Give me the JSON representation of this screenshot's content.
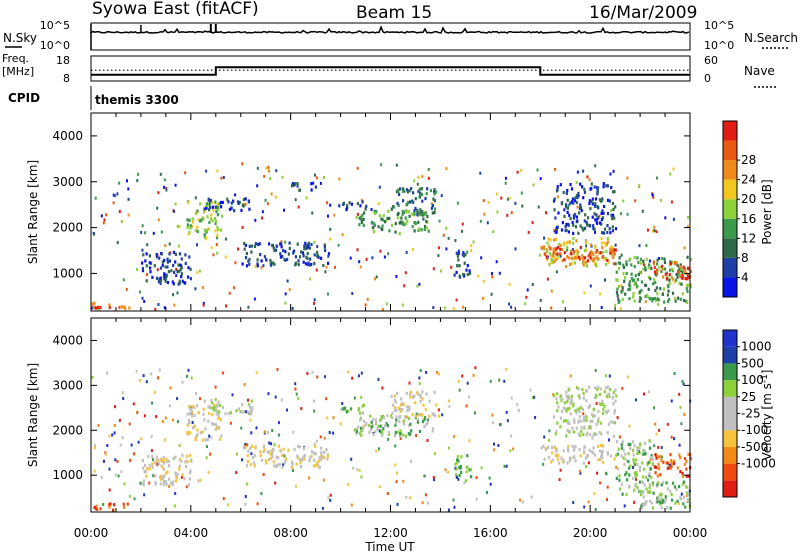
{
  "header": {
    "station": "Syowa East (fitACF)",
    "beam": "Beam 15",
    "date": "16/Mar/2009"
  },
  "top_panels": {
    "nsky_label": "N.Sky",
    "nsky_ticks": [
      "10^5",
      "10^0"
    ],
    "nsearch_label": "N.Search",
    "nsearch_ticks": [
      "10^5",
      "10^0"
    ],
    "freq_label": "Freq.",
    "freq_unit": "[MHz]",
    "freq_ticks": [
      "18",
      "8"
    ],
    "nave_label": "Nave",
    "nave_ticks": [
      "60",
      "0"
    ],
    "cpid_label": "CPID",
    "cpid_value": "themis 3300"
  },
  "colors": {
    "power_scale": [
      "#0a14e6",
      "#1f3fa8",
      "#2f6b4a",
      "#3b9a4c",
      "#8cd03c",
      "#f2c81e",
      "#f08a1a",
      "#e85a14",
      "#e01e14"
    ],
    "velocity_scale": [
      "#e01e14",
      "#ef4b10",
      "#f28a1a",
      "#f5c43c",
      "#c0c0c0",
      "#c0c0c0",
      "#8cd03c",
      "#3b9a4c",
      "#1f3fa8",
      "#2233cc"
    ]
  },
  "chart_data": [
    {
      "type": "line",
      "title": "N.Sky / N.Search",
      "xlabel": "",
      "ylabel": "",
      "x": [
        "00:00",
        "04:00",
        "08:00",
        "12:00",
        "16:00",
        "20:00",
        "00:00"
      ],
      "series": [
        {
          "name": "N.Sky",
          "values": [
            10000,
            10000,
            10000,
            10000,
            10000,
            10000,
            10000
          ]
        },
        {
          "name": "N.Search",
          "values": [
            10000,
            10000,
            10000,
            10000,
            10000,
            10000,
            10000
          ]
        }
      ]
    },
    {
      "type": "line",
      "title": "Freq. / Nave",
      "xlabel": "",
      "ylabel": "Freq. [MHz]",
      "x_hours": [
        0,
        5,
        5,
        18,
        18,
        24
      ],
      "series": [
        {
          "name": "Freq.",
          "values": [
            10.5,
            10.5,
            13.5,
            13.5,
            10.5,
            10.5
          ]
        },
        {
          "name": "Nave",
          "values": [
            26,
            26,
            26,
            26,
            26,
            26
          ]
        }
      ],
      "ylim": [
        8,
        18
      ]
    },
    {
      "type": "heatmap",
      "title": "",
      "xlabel": "",
      "ylabel": "Slant Range [km]",
      "xlim": [
        0,
        24
      ],
      "ylim": [
        180,
        4500
      ],
      "x_ticks": [
        "00:00",
        "04:00",
        "08:00",
        "12:00",
        "16:00",
        "20:00",
        "00:00"
      ],
      "y_ticks": [
        "1000",
        "2000",
        "3000",
        "4000"
      ],
      "colorbar_label": "Power [dB]",
      "colorbar_ticks": [
        "4",
        "8",
        "12",
        "16",
        "20",
        "24",
        "28"
      ],
      "regions": [
        {
          "t0": 3.8,
          "t1": 5.2,
          "r0": 1800,
          "r1": 2600,
          "level": 4
        },
        {
          "t0": 4.5,
          "t1": 6.5,
          "r0": 2400,
          "r1": 2700,
          "level": 1
        },
        {
          "t0": 6.0,
          "t1": 9.5,
          "r0": 1200,
          "r1": 1700,
          "level": 1
        },
        {
          "t0": 8.0,
          "t1": 9.0,
          "r0": 2800,
          "r1": 3000,
          "level": 1
        },
        {
          "t0": 9.8,
          "t1": 11.0,
          "r0": 2400,
          "r1": 2600,
          "level": 1
        },
        {
          "t0": 10.5,
          "t1": 13.5,
          "r0": 1900,
          "r1": 2400,
          "level": 3
        },
        {
          "t0": 12.0,
          "t1": 13.8,
          "r0": 2300,
          "r1": 2900,
          "level": 2
        },
        {
          "t0": 2.0,
          "t1": 4.0,
          "r0": 800,
          "r1": 1500,
          "level": 1
        },
        {
          "t0": 0.0,
          "t1": 1.5,
          "r0": 250,
          "r1": 400,
          "level": 7
        },
        {
          "t0": 14.5,
          "t1": 15.2,
          "r0": 900,
          "r1": 1500,
          "level": 1
        },
        {
          "t0": 18.0,
          "t1": 21.0,
          "r0": 1200,
          "r1": 1800,
          "level": 5
        },
        {
          "t0": 18.0,
          "t1": 21.0,
          "r0": 1300,
          "r1": 1600,
          "level": 7
        },
        {
          "t0": 18.5,
          "t1": 21.0,
          "r0": 1900,
          "r1": 3000,
          "level": 1
        },
        {
          "t0": 21.0,
          "t1": 24.0,
          "r0": 400,
          "r1": 1400,
          "level": 3
        },
        {
          "t0": 22.5,
          "t1": 24.0,
          "r0": 900,
          "r1": 1300,
          "level": 7
        }
      ]
    },
    {
      "type": "heatmap",
      "title": "",
      "xlabel": "Time UT",
      "ylabel": "Slant Range [km]",
      "xlim": [
        0,
        24
      ],
      "ylim": [
        180,
        4500
      ],
      "x_ticks": [
        "00:00",
        "04:00",
        "08:00",
        "12:00",
        "16:00",
        "20:00",
        "00:00"
      ],
      "y_ticks": [
        "1000",
        "2000",
        "3000",
        "4000"
      ],
      "colorbar_label": "Velocity [m s^-1]",
      "colorbar_ticks": [
        "1000",
        "500",
        "100",
        "25",
        "-25",
        "-100",
        "-500",
        "-1000"
      ],
      "regions": [
        {
          "t0": 3.8,
          "t1": 5.2,
          "r0": 1800,
          "r1": 2600,
          "level": 4
        },
        {
          "t0": 4.5,
          "t1": 6.5,
          "r0": 2400,
          "r1": 2700,
          "level": 5
        },
        {
          "t0": 6.0,
          "t1": 9.5,
          "r0": 1200,
          "r1": 1700,
          "level": 4
        },
        {
          "t0": 9.8,
          "t1": 11.0,
          "r0": 2400,
          "r1": 2600,
          "level": 6
        },
        {
          "t0": 10.5,
          "t1": 13.5,
          "r0": 1900,
          "r1": 2400,
          "level": 6
        },
        {
          "t0": 12.0,
          "t1": 13.8,
          "r0": 2300,
          "r1": 2900,
          "level": 4
        },
        {
          "t0": 2.0,
          "t1": 4.0,
          "r0": 800,
          "r1": 1500,
          "level": 4
        },
        {
          "t0": 0.0,
          "t1": 1.5,
          "r0": 250,
          "r1": 400,
          "level": 1
        },
        {
          "t0": 14.5,
          "t1": 15.2,
          "r0": 900,
          "r1": 1500,
          "level": 7
        },
        {
          "t0": 18.0,
          "t1": 21.0,
          "r0": 1300,
          "r1": 1700,
          "level": 4
        },
        {
          "t0": 18.5,
          "t1": 21.0,
          "r0": 1900,
          "r1": 3000,
          "level": 5
        },
        {
          "t0": 21.0,
          "t1": 22.5,
          "r0": 600,
          "r1": 1800,
          "level": 6
        },
        {
          "t0": 22.5,
          "t1": 24.0,
          "r0": 1000,
          "r1": 1500,
          "level": 1
        },
        {
          "t0": 22.0,
          "t1": 24.0,
          "r0": 300,
          "r1": 900,
          "level": 6
        }
      ]
    }
  ]
}
